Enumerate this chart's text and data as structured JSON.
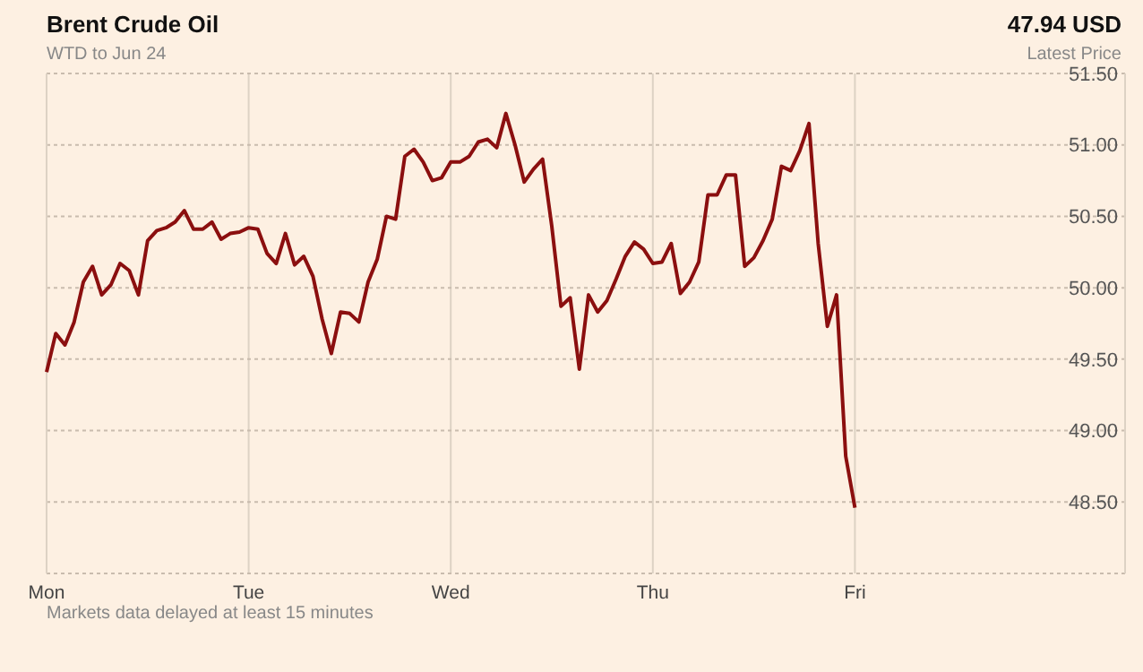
{
  "chart_data": {
    "type": "line",
    "title": "Brent Crude Oil",
    "subtitle": "WTD to Jun 24",
    "annotations": [
      "47.94 USD",
      "Latest Price",
      "Markets data delayed at least 15 minutes"
    ],
    "categories": [
      "Mon",
      null,
      null,
      null,
      null,
      null,
      null,
      null,
      null,
      null,
      null,
      null,
      null,
      null,
      null,
      null,
      null,
      null,
      null,
      null,
      null,
      null,
      "Tue",
      null,
      null,
      null,
      null,
      null,
      null,
      null,
      null,
      null,
      null,
      null,
      null,
      null,
      null,
      null,
      null,
      null,
      null,
      null,
      null,
      null,
      "Wed",
      null,
      null,
      null,
      null,
      null,
      null,
      null,
      null,
      null,
      null,
      null,
      null,
      null,
      null,
      null,
      null,
      null,
      null,
      null,
      null,
      null,
      "Thu",
      null,
      null,
      null,
      null,
      null,
      null,
      null,
      null,
      null,
      null,
      null,
      null,
      null,
      null,
      null,
      null,
      null,
      null,
      null,
      null,
      null,
      "Fri"
    ],
    "ylim": [
      48,
      51.5
    ],
    "yticks": [
      {
        "value": 48,
        "label": null
      },
      {
        "value": 48.5,
        "label": "48.50"
      },
      {
        "value": 49,
        "label": "49.00"
      },
      {
        "value": 49.5,
        "label": "49.50"
      },
      {
        "value": 50,
        "label": "50.00"
      },
      {
        "value": 50.5,
        "label": "50.50"
      },
      {
        "value": 51,
        "label": "51.00"
      },
      {
        "value": 51.5,
        "label": "51.50"
      }
    ],
    "grid": true,
    "marker": "none",
    "line_style": "solid",
    "series": [
      {
        "color": "#8b0f0f",
        "values": [
          49.41,
          49.68,
          49.6,
          49.76,
          50.04,
          50.15,
          49.95,
          50.02,
          50.17,
          50.12,
          49.95,
          50.33,
          50.4,
          50.42,
          50.46,
          50.54,
          50.41,
          50.41,
          50.46,
          50.34,
          50.38,
          50.39,
          50.42,
          50.41,
          50.24,
          50.17,
          50.38,
          50.16,
          50.22,
          50.08,
          49.78,
          49.54,
          49.83,
          49.82,
          49.76,
          50.04,
          50.2,
          50.5,
          50.48,
          50.92,
          50.97,
          50.88,
          50.75,
          50.77,
          50.88,
          50.88,
          50.92,
          51.02,
          51.04,
          50.98,
          51.22,
          51.0,
          50.74,
          50.83,
          50.9,
          50.43,
          49.87,
          49.93,
          49.43,
          49.95,
          49.83,
          49.91,
          50.06,
          50.22,
          50.32,
          50.27,
          50.17,
          50.18,
          50.31,
          49.96,
          50.04,
          50.18,
          50.65,
          50.65,
          50.79,
          50.79,
          50.15,
          50.21,
          50.33,
          50.48,
          50.85,
          50.82,
          50.96,
          51.15,
          50.31,
          49.73,
          49.95,
          48.82,
          48.46
        ]
      }
    ]
  }
}
